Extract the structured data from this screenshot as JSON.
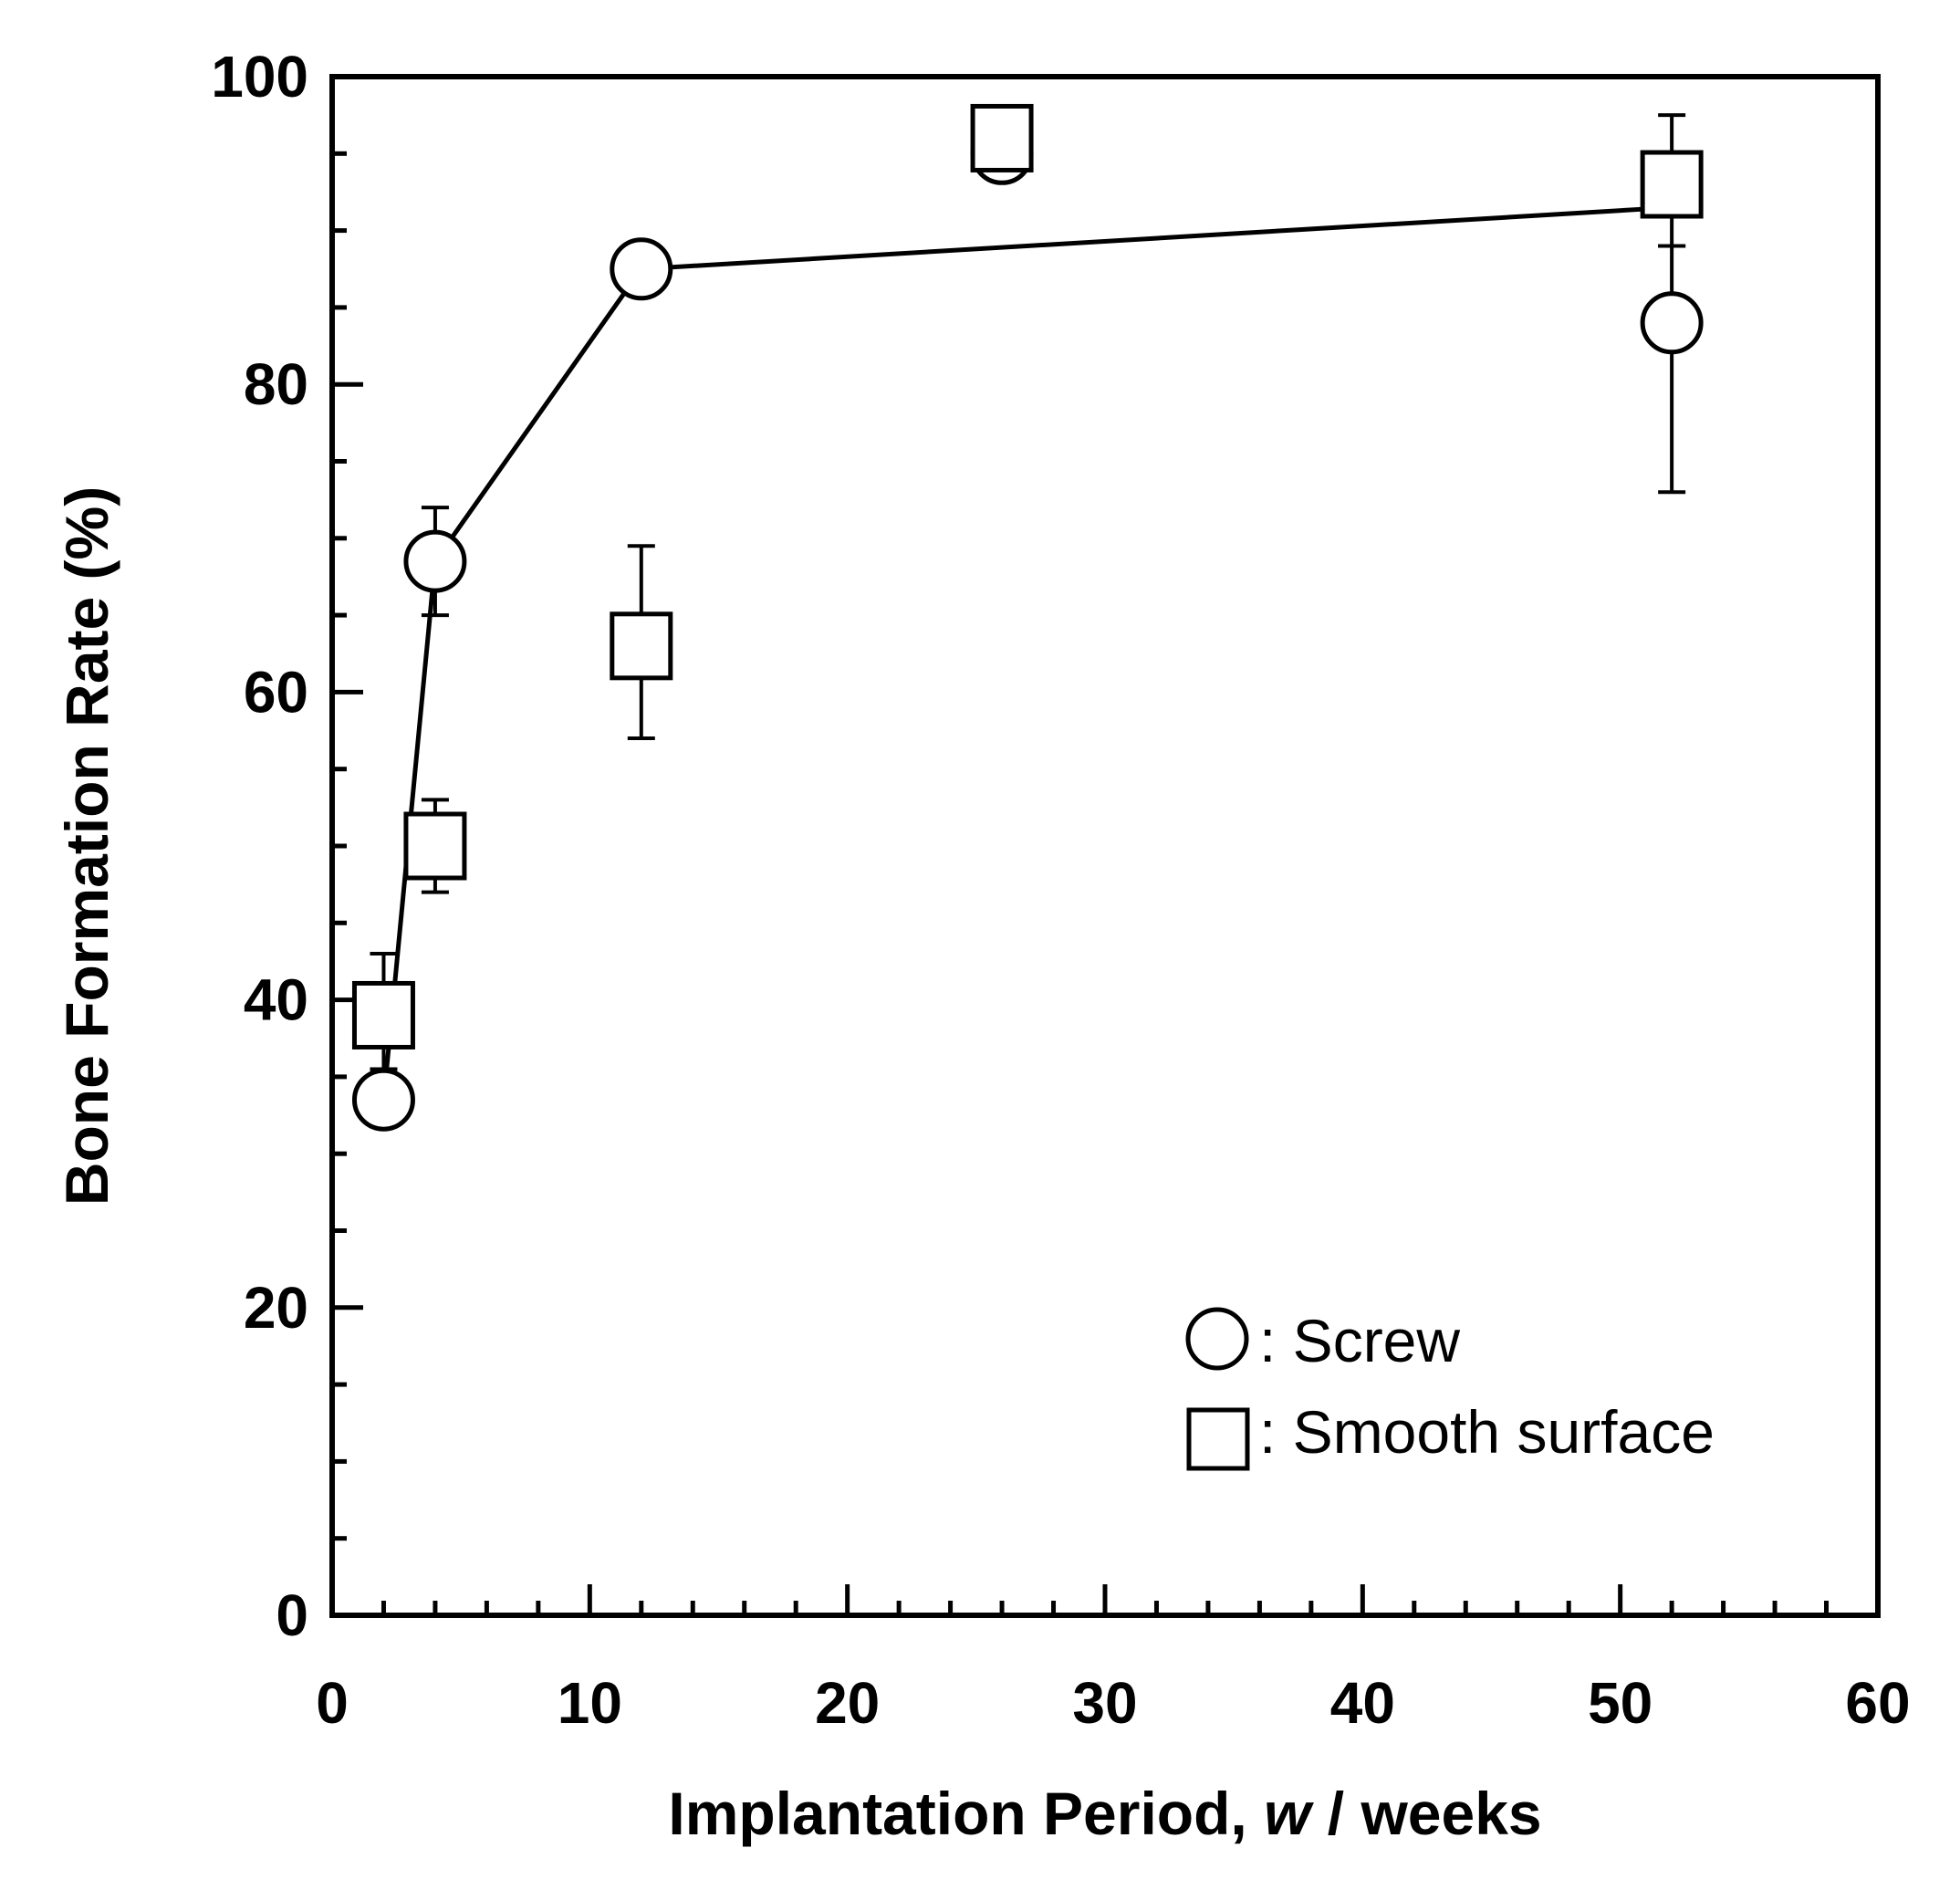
{
  "chart_data": {
    "type": "scatter",
    "xlabel": "Implantation Period, w / weeks",
    "xlabel_parts": {
      "prefix": "Implantation Period, ",
      "var": "w",
      "suffix": " / weeks"
    },
    "ylabel": "Bone Formation Rate (%)",
    "xlim": [
      0,
      60
    ],
    "ylim": [
      0,
      100
    ],
    "xticks": [
      0,
      10,
      20,
      30,
      40,
      50,
      60
    ],
    "yticks": [
      0,
      20,
      40,
      60,
      80,
      100
    ],
    "x_minor_step": 2,
    "y_minor_step": 5,
    "legend_position": "bottom-right",
    "series": [
      {
        "name": "Screw",
        "legend_label": ": Screw",
        "marker": "circle",
        "connected": true,
        "points": [
          {
            "x": 2,
            "y": 33.5,
            "err_low": 0,
            "err_high": 0
          },
          {
            "x": 4,
            "y": 68.5,
            "err_low": 3.5,
            "err_high": 3.5
          },
          {
            "x": 12,
            "y": 87.5,
            "err_low": 0,
            "err_high": 0
          },
          {
            "x": 26,
            "y": 95.0,
            "err_low": 0,
            "err_high": 0
          },
          {
            "x": 52,
            "y": 84.0,
            "err_low": 11.0,
            "err_high": 5.0
          }
        ],
        "line_points": [
          {
            "x": 2,
            "y": 33.5
          },
          {
            "x": 4,
            "y": 68.5
          },
          {
            "x": 12,
            "y": 87.5
          },
          {
            "x": 52,
            "y": 91.5
          }
        ]
      },
      {
        "name": "Smooth surface",
        "legend_label": ": Smooth surface",
        "marker": "square",
        "connected": false,
        "points": [
          {
            "x": 2,
            "y": 39.0,
            "err_low": 3.5,
            "err_high": 4.0
          },
          {
            "x": 4,
            "y": 50.0,
            "err_low": 3.0,
            "err_high": 3.0
          },
          {
            "x": 12,
            "y": 63.0,
            "err_low": 6.0,
            "err_high": 6.5
          },
          {
            "x": 26,
            "y": 96.0,
            "err_low": 0,
            "err_high": 0
          },
          {
            "x": 52,
            "y": 93.0,
            "err_low": 4.0,
            "err_high": 4.5
          }
        ]
      }
    ]
  },
  "colors": {
    "ink": "#000000",
    "marker_fill": "#ffffff",
    "background": "#ffffff"
  }
}
